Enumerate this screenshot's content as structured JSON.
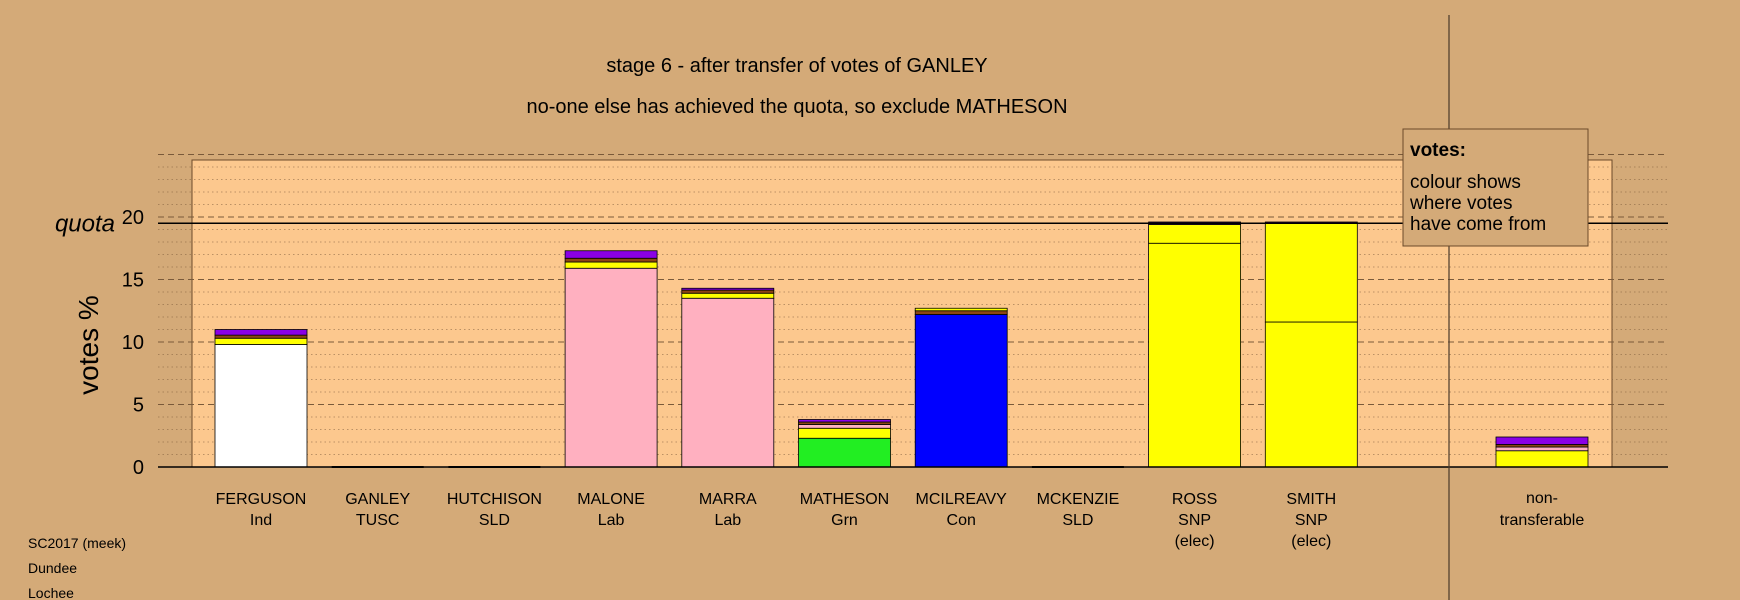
{
  "chart_data": {
    "type": "bar",
    "stacked": true,
    "title": "stage 6 - after transfer of votes of GANLEY",
    "subtitle": "no-one else has achieved the quota, so exclude MATHESON",
    "ylabel": "votes %",
    "ylim": [
      0,
      25
    ],
    "yticks": [
      0,
      5,
      10,
      15,
      20
    ],
    "quota": 19.5,
    "quota_label": "quota",
    "grid": true,
    "categories": [
      {
        "name": "FERGUSON",
        "party": "Ind",
        "status": ""
      },
      {
        "name": "GANLEY",
        "party": "TUSC",
        "status": ""
      },
      {
        "name": "HUTCHISON",
        "party": "SLD",
        "status": ""
      },
      {
        "name": "MALONE",
        "party": "Lab",
        "status": ""
      },
      {
        "name": "MARRA",
        "party": "Lab",
        "status": ""
      },
      {
        "name": "MATHESON",
        "party": "Grn",
        "status": ""
      },
      {
        "name": "MCILREAVY",
        "party": "Con",
        "status": ""
      },
      {
        "name": "MCKENZIE",
        "party": "SLD",
        "status": ""
      },
      {
        "name": "ROSS",
        "party": "SNP",
        "status": "(elec)"
      },
      {
        "name": "SMITH",
        "party": "SNP",
        "status": "(elec)"
      }
    ],
    "bars": [
      {
        "segments": [
          {
            "value": 9.8,
            "color": "#ffffff"
          },
          {
            "value": 0.5,
            "color": "#ffff00"
          },
          {
            "value": 0.25,
            "color": "#8b4513"
          },
          {
            "value": 0.45,
            "color": "#8a00e6"
          }
        ]
      },
      {
        "segments": []
      },
      {
        "segments": []
      },
      {
        "segments": [
          {
            "value": 15.9,
            "color": "#ffb0c0"
          },
          {
            "value": 0.5,
            "color": "#ffff00"
          },
          {
            "value": 0.3,
            "color": "#8b4513"
          },
          {
            "value": 0.6,
            "color": "#8a00e6"
          }
        ]
      },
      {
        "segments": [
          {
            "value": 13.5,
            "color": "#ffb0c0"
          },
          {
            "value": 0.4,
            "color": "#ffff00"
          },
          {
            "value": 0.25,
            "color": "#8b4513"
          },
          {
            "value": 0.15,
            "color": "#8a00e6"
          }
        ]
      },
      {
        "segments": [
          {
            "value": 2.3,
            "color": "#22ee22"
          },
          {
            "value": 0.8,
            "color": "#ffff00"
          },
          {
            "value": 0.3,
            "color": "#ffb0c0"
          },
          {
            "value": 0.2,
            "color": "#8b4513"
          },
          {
            "value": 0.2,
            "color": "#8a00e6"
          }
        ]
      },
      {
        "segments": [
          {
            "value": 12.2,
            "color": "#0000ff"
          },
          {
            "value": 0.3,
            "color": "#8b4513"
          },
          {
            "value": 0.2,
            "color": "#ffff00"
          }
        ]
      },
      {
        "segments": []
      },
      {
        "segments": [
          {
            "value": 17.9,
            "color": "#ffff00"
          },
          {
            "value": 1.5,
            "color": "#ffff00"
          },
          {
            "value": 0.2,
            "color": "#8a00e6"
          }
        ]
      },
      {
        "segments": [
          {
            "value": 11.6,
            "color": "#ffff00"
          },
          {
            "value": 7.9,
            "color": "#ffff00"
          },
          {
            "value": 0.1,
            "color": "#8a00e6"
          }
        ]
      }
    ],
    "nontransferable": {
      "label_line1": "non-",
      "label_line2": "transferable",
      "segments": [
        {
          "value": 1.3,
          "color": "#ffff00"
        },
        {
          "value": 0.3,
          "color": "#ffb0c0"
        },
        {
          "value": 0.2,
          "color": "#8b4513"
        },
        {
          "value": 0.6,
          "color": "#8a00e6"
        }
      ]
    },
    "legend": {
      "title": "votes:",
      "lines": [
        "colour shows",
        "where votes",
        "have come from"
      ],
      "placement": "top-right"
    }
  },
  "footer": {
    "lines": [
      "SC2017 (meek)",
      "Dundee",
      "Lochee"
    ]
  },
  "colors": {
    "background": "#d4aa78",
    "plot_area": "#fcc88e",
    "gridline": "#7a5a3a"
  }
}
